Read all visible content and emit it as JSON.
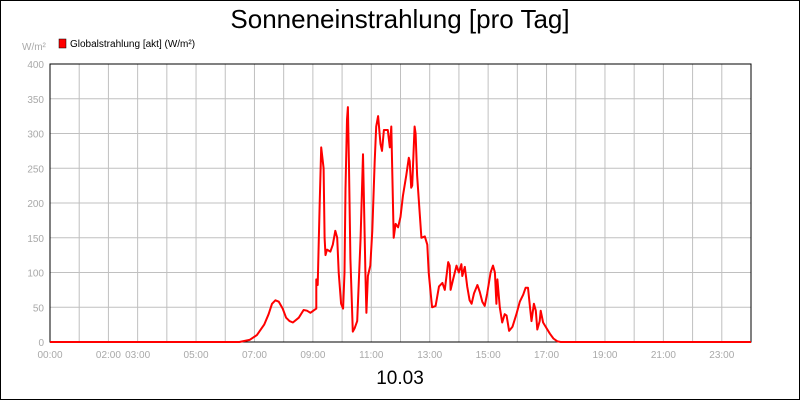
{
  "chart_data": {
    "type": "line",
    "title": "Sonneneinstrahlung [pro Tag]",
    "date_label": "10.03",
    "y_unit_label": "W/m²",
    "ylim": [
      0,
      400
    ],
    "y_ticks": [
      0,
      50,
      100,
      150,
      200,
      250,
      300,
      350,
      400
    ],
    "xlim": [
      "00:00",
      "24:00"
    ],
    "x_tick_labels": [
      {
        "t": "00:00",
        "label": "00:00"
      },
      {
        "t": "02:00",
        "label": "02:00"
      },
      {
        "t": "03:00",
        "label": "03:00"
      },
      {
        "t": "05:00",
        "label": "05:00"
      },
      {
        "t": "07:00",
        "label": "07:00"
      },
      {
        "t": "09:00",
        "label": "09:00"
      },
      {
        "t": "11:00",
        "label": "11:00"
      },
      {
        "t": "13:00",
        "label": "13:00"
      },
      {
        "t": "15:00",
        "label": "15:00"
      },
      {
        "t": "17:00",
        "label": "17:00"
      },
      {
        "t": "19:00",
        "label": "19:00"
      },
      {
        "t": "21:00",
        "label": "21:00"
      },
      {
        "t": "23:00",
        "label": "23:00"
      }
    ],
    "grid": true,
    "legend": {
      "position": "top-left",
      "entries": [
        {
          "name": "Globalstrahlung [akt] (W/m²)",
          "color": "#ff0000"
        }
      ]
    },
    "series": [
      {
        "name": "Globalstrahlung [akt] (W/m²)",
        "color": "#ff0000",
        "points": [
          [
            "00:00",
            0
          ],
          [
            "06:29",
            0
          ],
          [
            "06:50",
            3
          ],
          [
            "07:05",
            10
          ],
          [
            "07:20",
            25
          ],
          [
            "07:29",
            40
          ],
          [
            "07:36",
            55
          ],
          [
            "07:43",
            60
          ],
          [
            "07:50",
            58
          ],
          [
            "07:58",
            48
          ],
          [
            "08:05",
            35
          ],
          [
            "08:12",
            30
          ],
          [
            "08:19",
            28
          ],
          [
            "08:31",
            35
          ],
          [
            "08:41",
            46
          ],
          [
            "08:48",
            45
          ],
          [
            "08:55",
            42
          ],
          [
            "09:07",
            48
          ],
          [
            "09:07",
            90
          ],
          [
            "09:10",
            82
          ],
          [
            "09:14",
            200
          ],
          [
            "09:17",
            280
          ],
          [
            "09:22",
            250
          ],
          [
            "09:24",
            150
          ],
          [
            "09:26",
            125
          ],
          [
            "09:29",
            133
          ],
          [
            "09:36",
            130
          ],
          [
            "09:41",
            140
          ],
          [
            "09:46",
            160
          ],
          [
            "09:50",
            150
          ],
          [
            "09:53",
            100
          ],
          [
            "09:58",
            55
          ],
          [
            "10:02",
            48
          ],
          [
            "10:05",
            100
          ],
          [
            "10:07",
            220
          ],
          [
            "10:10",
            320
          ],
          [
            "10:12",
            338
          ],
          [
            "10:14",
            260
          ],
          [
            "10:17",
            120
          ],
          [
            "10:22",
            15
          ],
          [
            "10:26",
            20
          ],
          [
            "10:31",
            30
          ],
          [
            "10:38",
            150
          ],
          [
            "10:43",
            270
          ],
          [
            "10:45",
            200
          ],
          [
            "10:48",
            100
          ],
          [
            "10:50",
            42
          ],
          [
            "10:53",
            95
          ],
          [
            "10:58",
            110
          ],
          [
            "11:02",
            160
          ],
          [
            "11:07",
            260
          ],
          [
            "11:10",
            310
          ],
          [
            "11:14",
            325
          ],
          [
            "11:19",
            285
          ],
          [
            "11:22",
            275
          ],
          [
            "11:26",
            305
          ],
          [
            "11:34",
            305
          ],
          [
            "11:38",
            280
          ],
          [
            "11:41",
            310
          ],
          [
            "11:46",
            150
          ],
          [
            "11:50",
            170
          ],
          [
            "11:55",
            165
          ],
          [
            "12:00",
            180
          ],
          [
            "12:05",
            210
          ],
          [
            "12:12",
            240
          ],
          [
            "12:17",
            265
          ],
          [
            "12:19",
            260
          ],
          [
            "12:22",
            222
          ],
          [
            "12:24",
            225
          ],
          [
            "12:29",
            310
          ],
          [
            "12:31",
            300
          ],
          [
            "12:34",
            240
          ],
          [
            "12:38",
            200
          ],
          [
            "12:43",
            150
          ],
          [
            "12:50",
            152
          ],
          [
            "12:55",
            140
          ],
          [
            "12:58",
            100
          ],
          [
            "13:02",
            70
          ],
          [
            "13:05",
            50
          ],
          [
            "13:12",
            52
          ],
          [
            "13:19",
            80
          ],
          [
            "13:26",
            85
          ],
          [
            "13:31",
            75
          ],
          [
            "13:38",
            115
          ],
          [
            "13:41",
            110
          ],
          [
            "13:43",
            75
          ],
          [
            "13:48",
            90
          ],
          [
            "13:55",
            110
          ],
          [
            "14:00",
            100
          ],
          [
            "14:05",
            112
          ],
          [
            "14:07",
            95
          ],
          [
            "14:12",
            108
          ],
          [
            "14:17",
            80
          ],
          [
            "14:22",
            60
          ],
          [
            "14:26",
            55
          ],
          [
            "14:31",
            70
          ],
          [
            "14:38",
            82
          ],
          [
            "14:43",
            72
          ],
          [
            "14:48",
            58
          ],
          [
            "14:53",
            52
          ],
          [
            "14:58",
            70
          ],
          [
            "15:05",
            100
          ],
          [
            "15:10",
            110
          ],
          [
            "15:14",
            100
          ],
          [
            "15:17",
            55
          ],
          [
            "15:19",
            90
          ],
          [
            "15:24",
            50
          ],
          [
            "15:29",
            28
          ],
          [
            "15:34",
            40
          ],
          [
            "15:38",
            38
          ],
          [
            "15:43",
            16
          ],
          [
            "15:50",
            22
          ],
          [
            "15:58",
            40
          ],
          [
            "16:05",
            58
          ],
          [
            "16:12",
            68
          ],
          [
            "16:17",
            78
          ],
          [
            "16:22",
            78
          ],
          [
            "16:26",
            50
          ],
          [
            "16:29",
            30
          ],
          [
            "16:34",
            55
          ],
          [
            "16:38",
            45
          ],
          [
            "16:41",
            18
          ],
          [
            "16:46",
            30
          ],
          [
            "16:48",
            45
          ],
          [
            "16:53",
            28
          ],
          [
            "17:00",
            20
          ],
          [
            "17:07",
            12
          ],
          [
            "17:14",
            5
          ],
          [
            "17:22",
            1
          ],
          [
            "17:29",
            0
          ],
          [
            "24:00",
            0
          ]
        ]
      }
    ]
  }
}
